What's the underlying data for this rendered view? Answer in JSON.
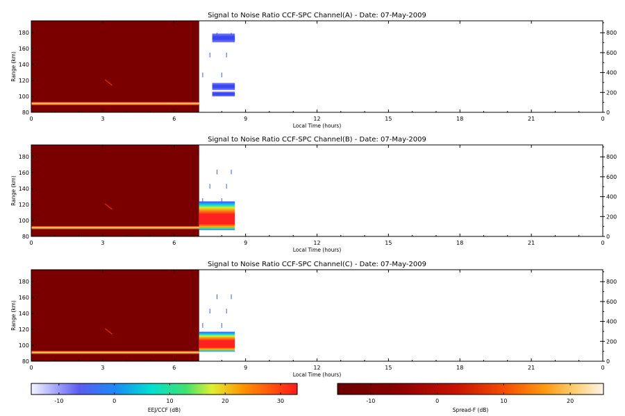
{
  "panels": [
    {
      "title": "Signal to Noise Ratio CCF-SPC Channel(A) - Date: 07-May-2009"
    },
    {
      "title": "Signal to Noise Ratio CCF-SPC Channel(B) - Date: 07-May-2009"
    },
    {
      "title": "Signal to Noise Ratio CCF-SPC Channel(C) - Date: 07-May-2009"
    }
  ],
  "colorbars": {
    "eej": {
      "label": "EEJ/CCF (dB)",
      "ticks": [
        "-10",
        "0",
        "10",
        "20",
        "30"
      ],
      "range": [
        -15,
        33
      ]
    },
    "spread": {
      "label": "Spread-F (dB)",
      "ticks": [
        "-10",
        "0",
        "10",
        "20"
      ],
      "range": [
        -15,
        25
      ]
    }
  },
  "chart_data": [
    {
      "type": "heatmap",
      "title": "Signal to Noise Ratio CCF-SPC Channel(A) - Date: 07-May-2009",
      "xlabel": "Local Time (hours)",
      "ylabel": "Range (km)",
      "xlim": [
        0,
        24
      ],
      "ylim": [
        80,
        195
      ],
      "y2lim": [
        0,
        920
      ],
      "xticks": [
        "0",
        "3",
        "6",
        "9",
        "12",
        "15",
        "18",
        "21",
        "0"
      ],
      "yticks": [
        "80",
        "100",
        "120",
        "140",
        "160",
        "180"
      ],
      "y2ticks": [
        "0",
        "200",
        "400",
        "600",
        "800"
      ],
      "spread_f_region": {
        "time_range": [
          0,
          7.05
        ],
        "range_km": [
          80,
          195
        ],
        "band_km": 91
      },
      "eej_blobs": [
        {
          "t0": 7.6,
          "t1": 8.55,
          "r0": 168,
          "r1": 179,
          "level": "low"
        },
        {
          "t0": 7.6,
          "t1": 8.55,
          "r0": 108,
          "r1": 117,
          "level": "low"
        },
        {
          "t0": 7.6,
          "t1": 8.55,
          "r0": 100,
          "r1": 106,
          "level": "low"
        }
      ]
    },
    {
      "type": "heatmap",
      "title": "Signal to Noise Ratio CCF-SPC Channel(B) - Date: 07-May-2009",
      "xlabel": "Local Time (hours)",
      "ylabel": "Range (km)",
      "xlim": [
        0,
        24
      ],
      "ylim": [
        80,
        195
      ],
      "y2lim": [
        0,
        920
      ],
      "xticks": [
        "0",
        "3",
        "6",
        "9",
        "12",
        "15",
        "18",
        "21",
        "0"
      ],
      "yticks": [
        "80",
        "100",
        "120",
        "140",
        "160",
        "180"
      ],
      "y2ticks": [
        "0",
        "200",
        "400",
        "600",
        "800"
      ],
      "spread_f_region": {
        "time_range": [
          0,
          7.05
        ],
        "range_km": [
          80,
          195
        ],
        "band_km": 91
      },
      "eej_blobs": [
        {
          "t0": 7.05,
          "t1": 8.55,
          "r0": 88,
          "r1": 124,
          "level": "high"
        }
      ]
    },
    {
      "type": "heatmap",
      "title": "Signal to Noise Ratio CCF-SPC Channel(C) - Date: 07-May-2009",
      "xlabel": "Local Time (hours)",
      "ylabel": "Range (km)",
      "xlim": [
        0,
        24
      ],
      "ylim": [
        80,
        195
      ],
      "y2lim": [
        0,
        920
      ],
      "xticks": [
        "0",
        "3",
        "6",
        "9",
        "12",
        "15",
        "18",
        "21",
        "0"
      ],
      "yticks": [
        "80",
        "100",
        "120",
        "140",
        "160",
        "180"
      ],
      "y2ticks": [
        "0",
        "200",
        "400",
        "600",
        "800"
      ],
      "spread_f_region": {
        "time_range": [
          0,
          7.05
        ],
        "range_km": [
          80,
          195
        ],
        "band_km": 91
      },
      "eej_blobs": [
        {
          "t0": 7.05,
          "t1": 8.55,
          "r0": 92,
          "r1": 117,
          "level": "high"
        }
      ]
    }
  ]
}
